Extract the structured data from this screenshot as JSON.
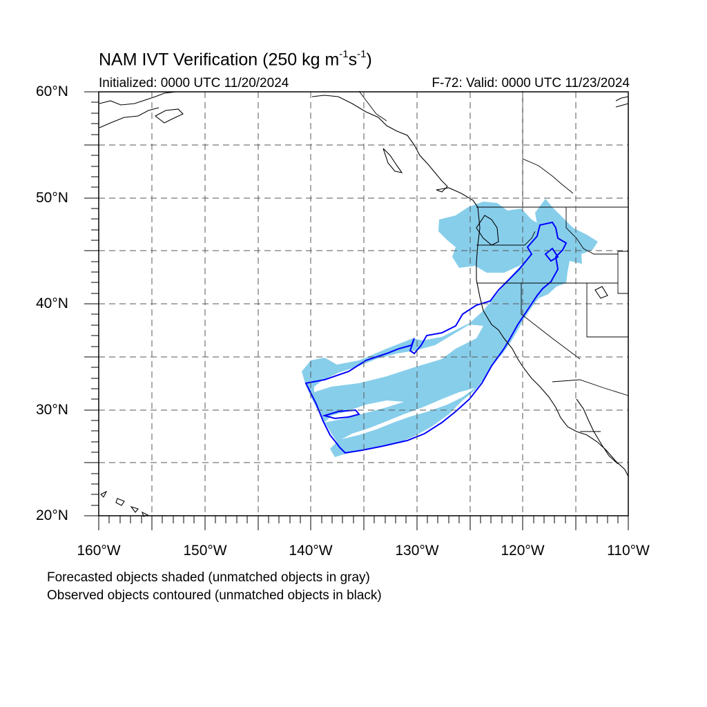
{
  "map": {
    "title_prefix": "NAM IVT Verification (250 kg m",
    "title_exp1": "-1",
    "title_mid": "s",
    "title_exp2": "-1",
    "title_suffix": ")",
    "initialized": "Initialized: 0000 UTC 11/20/2024",
    "valid": "F-72: Valid: 0000 UTC 11/23/2024",
    "lat_labels": [
      "60°N",
      "50°N",
      "40°N",
      "30°N",
      "20°N"
    ],
    "lon_labels": [
      "160°W",
      "150°W",
      "140°W",
      "130°W",
      "120°W",
      "110°W"
    ],
    "extent": {
      "lon_min": -160,
      "lon_max": -110,
      "lat_min": 20,
      "lat_max": 60
    },
    "forecast_color": "#87ceeb",
    "observed_color": "#0000ff",
    "footnote1": "Forecasted objects shaded (unmatched objects in gray)",
    "footnote2": "Observed objects contoured (unmatched objects in black)"
  }
}
